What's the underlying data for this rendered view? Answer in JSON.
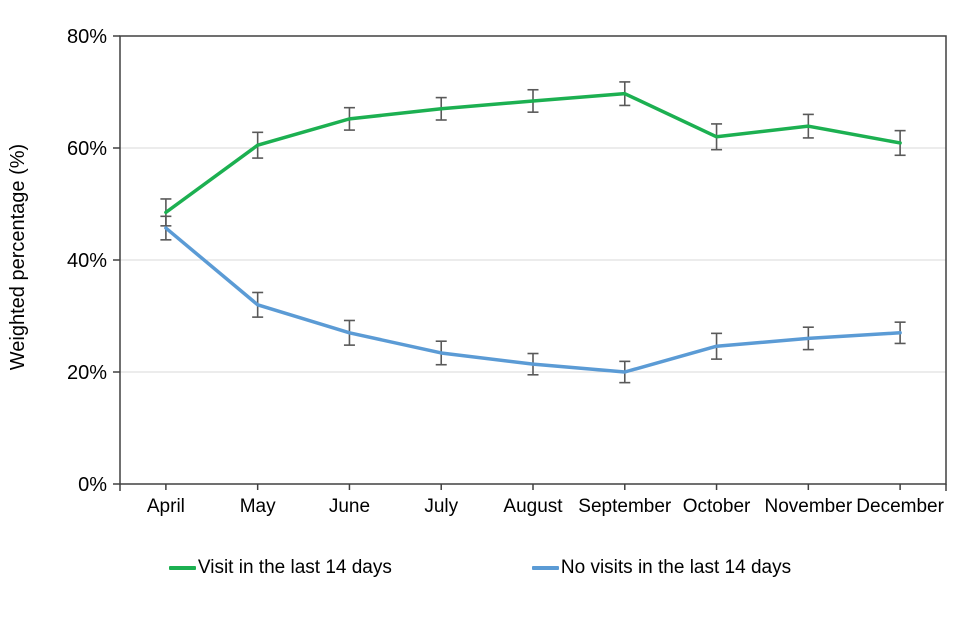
{
  "page": {
    "background": "#ffffff"
  },
  "chart_data": {
    "type": "line",
    "title": "",
    "xlabel": "",
    "ylabel": "Weighted percentage (%)",
    "categories": [
      "April",
      "May",
      "June",
      "July",
      "August",
      "September",
      "October",
      "November",
      "December"
    ],
    "y_ticks": [
      "0%",
      "20%",
      "40%",
      "60%",
      "80%"
    ],
    "ylim": [
      0,
      80
    ],
    "y_tick_step": 20,
    "grid": "horizontal",
    "error_bars": true,
    "legend_position": "bottom",
    "series": [
      {
        "name": "Visit in the last 14 days",
        "color": "#1cb051",
        "values": [
          48.5,
          60.5,
          65.2,
          67.0,
          68.4,
          69.7,
          62.0,
          63.9,
          60.9
        ],
        "ci": [
          2.4,
          2.3,
          2.0,
          2.0,
          2.0,
          2.1,
          2.3,
          2.1,
          2.2
        ]
      },
      {
        "name": "No visits in the last 14 days",
        "color": "#5b9bd5",
        "values": [
          45.7,
          32.0,
          27.0,
          23.4,
          21.4,
          20.0,
          24.6,
          26.0,
          27.0
        ],
        "ci": [
          2.1,
          2.2,
          2.2,
          2.1,
          1.9,
          1.9,
          2.3,
          2.0,
          1.9
        ]
      }
    ],
    "colors": {
      "axis": "#404040",
      "grid": "#d9d9d9",
      "error_bar": "#595959",
      "text": "#000000"
    }
  }
}
